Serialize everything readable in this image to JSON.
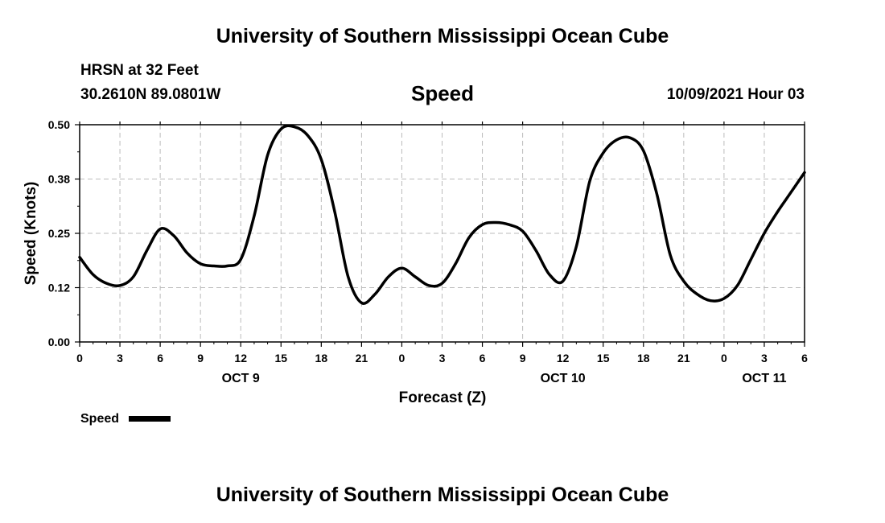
{
  "header": {
    "title_top": "University of Southern Mississippi Ocean Cube",
    "station": "HRSN at 32 Feet",
    "coords": "30.2610N  89.0801W",
    "variable": "Speed",
    "timestamp": "10/09/2021 Hour 03"
  },
  "footer": {
    "title_bottom": "University of Southern Mississippi Ocean Cube"
  },
  "legend": {
    "label": "Speed"
  },
  "colors": {
    "line": "#000000",
    "grid": "#bbbbbb"
  },
  "chart_data": {
    "type": "line",
    "xlabel": "Forecast (Z)",
    "ylabel": "Speed (Knots)",
    "ylim": [
      0,
      0.5
    ],
    "xlim": [
      0,
      54
    ],
    "yticks": [
      0.0,
      0.125,
      0.25,
      0.375,
      0.5
    ],
    "ytick_labels": [
      "0.00",
      "0.12",
      "0.25",
      "0.38",
      "0.50"
    ],
    "xticks": [
      0,
      3,
      6,
      9,
      12,
      15,
      18,
      21,
      24,
      27,
      30,
      33,
      36,
      39,
      42,
      45,
      48,
      51,
      54
    ],
    "xtick_labels": [
      "0",
      "3",
      "6",
      "9",
      "12",
      "15",
      "18",
      "21",
      "0",
      "3",
      "6",
      "9",
      "12",
      "15",
      "18",
      "21",
      "0",
      "3",
      "6"
    ],
    "day_labels": [
      {
        "x": 12,
        "label": "OCT 9"
      },
      {
        "x": 36,
        "label": "OCT 10"
      },
      {
        "x": 51,
        "label": "OCT 11"
      }
    ],
    "grid": true,
    "legend_position": "bottom-left",
    "series": [
      {
        "name": "Speed",
        "x": [
          0,
          1,
          2,
          3,
          4,
          5,
          6,
          7,
          8,
          9,
          10,
          11,
          12,
          13,
          14,
          15,
          16,
          17,
          18,
          19,
          20,
          21,
          22,
          23,
          24,
          25,
          26,
          27,
          28,
          29,
          30,
          31,
          32,
          33,
          34,
          35,
          36,
          37,
          38,
          39,
          40,
          41,
          42,
          43,
          44,
          45,
          46,
          47,
          48,
          49,
          50,
          51,
          52,
          53,
          54
        ],
        "values": [
          0.195,
          0.155,
          0.135,
          0.13,
          0.15,
          0.21,
          0.26,
          0.245,
          0.205,
          0.18,
          0.175,
          0.175,
          0.19,
          0.29,
          0.43,
          0.49,
          0.495,
          0.475,
          0.42,
          0.3,
          0.15,
          0.09,
          0.11,
          0.15,
          0.17,
          0.15,
          0.13,
          0.135,
          0.18,
          0.24,
          0.27,
          0.275,
          0.27,
          0.255,
          0.21,
          0.155,
          0.14,
          0.22,
          0.37,
          0.435,
          0.465,
          0.47,
          0.44,
          0.34,
          0.2,
          0.14,
          0.11,
          0.095,
          0.1,
          0.13,
          0.19,
          0.25,
          0.3,
          0.345,
          0.39
        ]
      }
    ]
  }
}
